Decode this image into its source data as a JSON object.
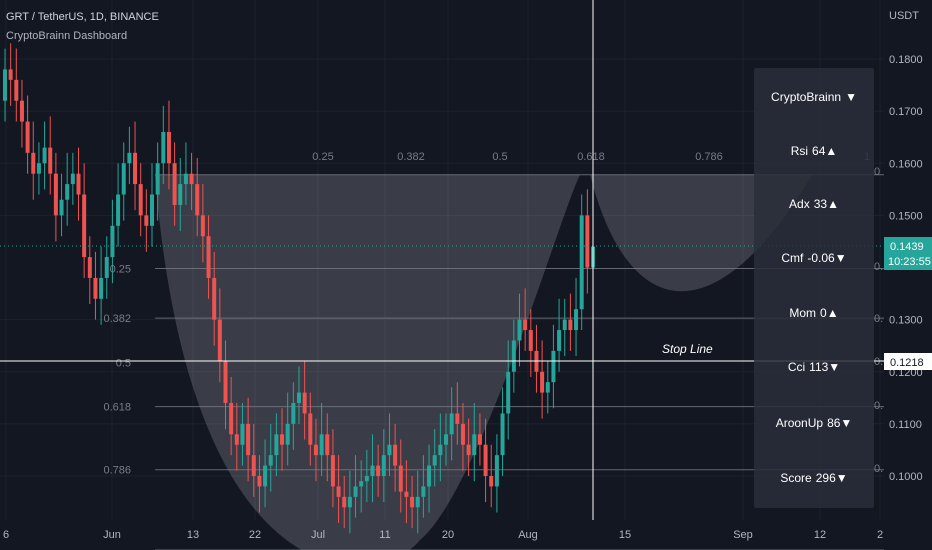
{
  "header": {
    "title": "GRT / TetherUS, 1D, BINANCE",
    "subtitle": "CryptoBrainn Dashboard"
  },
  "price_axis": {
    "unit": "USDT",
    "ticks": [
      "0.1800",
      "0.1700",
      "0.1600",
      "0.1500",
      "0.1300",
      "0.1200",
      "0.1100",
      "0.1000"
    ],
    "last_price": "0.1439",
    "countdown": "10:23:55",
    "marker": "0.1218",
    "last_bg": "#26a69a",
    "marker_bg": "#ffffff"
  },
  "time_axis": {
    "labels": [
      "6",
      "Jun",
      "13",
      "22",
      "Jul",
      "11",
      "20",
      "Aug",
      "15",
      "Sep",
      "12",
      "2"
    ]
  },
  "fib_levels": {
    "left_labels": [
      "0.25",
      "0.382",
      "0.5",
      "0.618",
      "0.786"
    ],
    "top_labels": [
      "0.25",
      "0.382",
      "0.5",
      "0.618",
      "0.786",
      "1"
    ],
    "right_labels": [
      "0",
      "0.",
      "0.",
      "0.",
      "0.",
      "0."
    ]
  },
  "annotation": {
    "stop_line": "Stop Line"
  },
  "dashboard": {
    "rows": [
      {
        "label": "CryptoBrainn",
        "value": "",
        "arrow": "▼"
      },
      {
        "label": "Rsi",
        "value": "64",
        "arrow": "▲"
      },
      {
        "label": "Adx",
        "value": "33",
        "arrow": "▲"
      },
      {
        "label": "Cmf",
        "value": "-0.06",
        "arrow": "▼"
      },
      {
        "label": "Mom",
        "value": "0",
        "arrow": "▲"
      },
      {
        "label": "Cci",
        "value": "113",
        "arrow": "▼"
      },
      {
        "label": "AroonUp",
        "value": "86",
        "arrow": "▼"
      },
      {
        "label": "Score",
        "value": "296",
        "arrow": "▼"
      }
    ]
  },
  "colors": {
    "background": "#131722",
    "up": "#26a69a",
    "down": "#ef5350",
    "grid": "#1e222d",
    "fib_line": "#787b86"
  },
  "chart_data": {
    "type": "candlestick",
    "title": "GRT / TetherUS, 1D, BINANCE",
    "ylabel": "USDT",
    "ylim": [
      0.0925,
      0.1875
    ],
    "stop_line": 0.1218,
    "fib_retracement": {
      "top": 0.1578,
      "levels": [
        0,
        0.25,
        0.382,
        0.5,
        0.618,
        0.786,
        1
      ]
    },
    "closes": [
      0.178,
      0.176,
      0.172,
      0.168,
      0.162,
      0.158,
      0.16,
      0.163,
      0.158,
      0.15,
      0.153,
      0.156,
      0.158,
      0.154,
      0.142,
      0.138,
      0.134,
      0.138,
      0.142,
      0.148,
      0.154,
      0.16,
      0.162,
      0.156,
      0.15,
      0.148,
      0.154,
      0.16,
      0.166,
      0.16,
      0.152,
      0.156,
      0.158,
      0.156,
      0.15,
      0.146,
      0.138,
      0.13,
      0.122,
      0.114,
      0.108,
      0.106,
      0.11,
      0.104,
      0.1,
      0.098,
      0.102,
      0.104,
      0.108,
      0.106,
      0.11,
      0.114,
      0.116,
      0.112,
      0.106,
      0.104,
      0.108,
      0.104,
      0.098,
      0.096,
      0.094,
      0.096,
      0.098,
      0.099,
      0.1,
      0.102,
      0.1,
      0.104,
      0.106,
      0.102,
      0.097,
      0.096,
      0.094,
      0.096,
      0.098,
      0.102,
      0.104,
      0.106,
      0.108,
      0.112,
      0.11,
      0.106,
      0.104,
      0.108,
      0.106,
      0.1,
      0.098,
      0.104,
      0.112,
      0.12,
      0.126,
      0.13,
      0.128,
      0.124,
      0.12,
      0.116,
      0.118,
      0.124,
      0.128,
      0.13,
      0.128,
      0.132,
      0.15,
      0.14,
      0.144
    ]
  }
}
